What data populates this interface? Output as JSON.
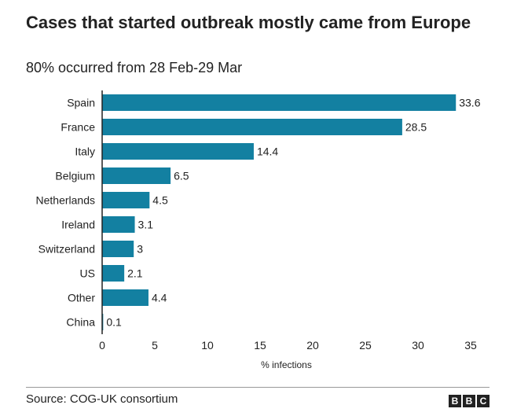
{
  "title": "Cases that started outbreak mostly came from Europe",
  "subtitle": "80% occurred from 28 Feb-29 Mar",
  "source": "Source: COG-UK consortium",
  "logo_letters": [
    "B",
    "B",
    "C"
  ],
  "bar_color": "#1380A1",
  "chart_data": {
    "type": "bar",
    "orientation": "horizontal",
    "categories": [
      "Spain",
      "France",
      "Italy",
      "Belgium",
      "Netherlands",
      "Ireland",
      "Switzerland",
      "US",
      "Other",
      "China"
    ],
    "values": [
      33.6,
      28.5,
      14.4,
      6.5,
      4.5,
      3.1,
      3,
      2.1,
      4.4,
      0.1
    ],
    "value_labels": [
      "33.6",
      "28.5",
      "14.4",
      "6.5",
      "4.5",
      "3.1",
      "3",
      "2.1",
      "4.4",
      "0.1"
    ],
    "xlabel": "% infections",
    "xlim": [
      0,
      35
    ],
    "xticks": [
      0,
      5,
      10,
      15,
      20,
      25,
      30,
      35
    ],
    "grid": false,
    "legend": "none"
  }
}
